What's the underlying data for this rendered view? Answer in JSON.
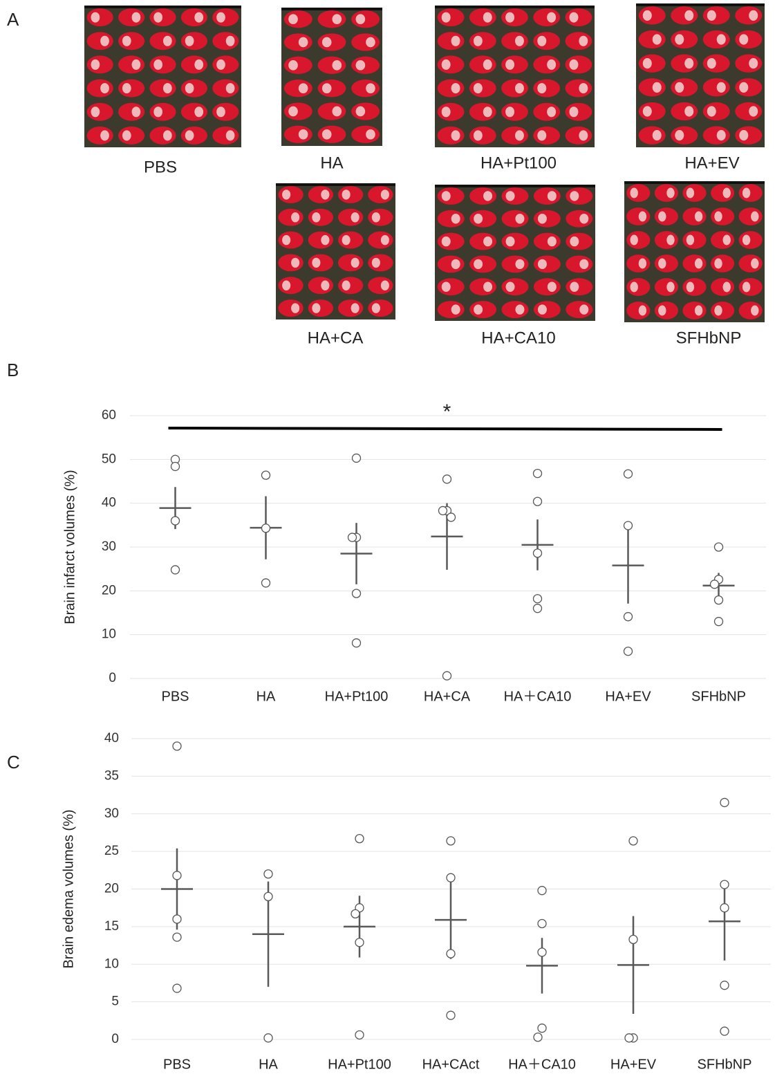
{
  "panel_labels": [
    "A",
    "B",
    "C"
  ],
  "images": [
    {
      "label": "PBS"
    },
    {
      "label": "HA"
    },
    {
      "label": "HA+Pt100"
    },
    {
      "label": "HA+EV"
    },
    {
      "label": "HA+CA"
    },
    {
      "label": "HA+CA10"
    },
    {
      "label": "SFHbNP"
    }
  ],
  "chart_data": [
    {
      "type": "dotplot",
      "y_label": "Brain infarct volumes (%)",
      "annotation": "*",
      "categories": [
        "PBS",
        "HA",
        "HA+Pt100",
        "HA+CA",
        "HA＋CA10",
        "HA+EV",
        "SFHbNP"
      ],
      "points": [
        [
          50,
          48.4,
          36,
          24.8
        ],
        [
          46.4,
          34.3,
          21.8
        ],
        [
          50.3,
          32.2,
          32.2,
          19.4,
          8.1
        ],
        [
          45.5,
          38.3,
          38.3,
          36.8,
          0.6
        ],
        [
          46.8,
          40.4,
          28.6,
          18.2,
          16
        ],
        [
          46.7,
          34.9,
          14.1,
          6.2
        ],
        [
          30,
          22.6,
          21.5,
          17.9,
          13
        ]
      ],
      "means": [
        38.9,
        34.4,
        28.5,
        32.4,
        30.5,
        25.8,
        21.2
      ],
      "errors": [
        4.8,
        7.2,
        7,
        7.6,
        5.8,
        8.7,
        2.9
      ],
      "color": "#595959",
      "ylim": [
        0,
        60
      ],
      "yticks": [
        0,
        10,
        20,
        30,
        40,
        50,
        60
      ],
      "grid": true
    },
    {
      "type": "dotplot",
      "y_label": "Brain edema volumes (%)",
      "categories": [
        "PBS",
        "HA",
        "HA+Pt100",
        "HA+CAct",
        "HA＋CA10",
        "HA+EV",
        "SFHbNP"
      ],
      "points": [
        [
          39,
          21.8,
          16,
          13.6,
          6.8
        ],
        [
          22,
          19,
          0.2
        ],
        [
          26.7,
          17.5,
          16.7,
          12.9,
          0.6
        ],
        [
          26.4,
          21.5,
          11.4,
          3.2
        ],
        [
          19.8,
          15.4,
          11.6,
          1.5,
          0.3
        ],
        [
          26.4,
          13.3,
          0.2,
          0.2
        ],
        [
          31.5,
          20.6,
          17.5,
          7.2,
          1.1
        ]
      ],
      "means": [
        20,
        14,
        15,
        15.9,
        9.8,
        9.9,
        15.7
      ],
      "errors": [
        5.4,
        7,
        4.1,
        5.2,
        3.7,
        6.5,
        5.2
      ],
      "color": "#595959",
      "ylim": [
        0,
        40
      ],
      "yticks": [
        0,
        5,
        10,
        15,
        20,
        25,
        30,
        35,
        40
      ],
      "grid": true
    }
  ]
}
